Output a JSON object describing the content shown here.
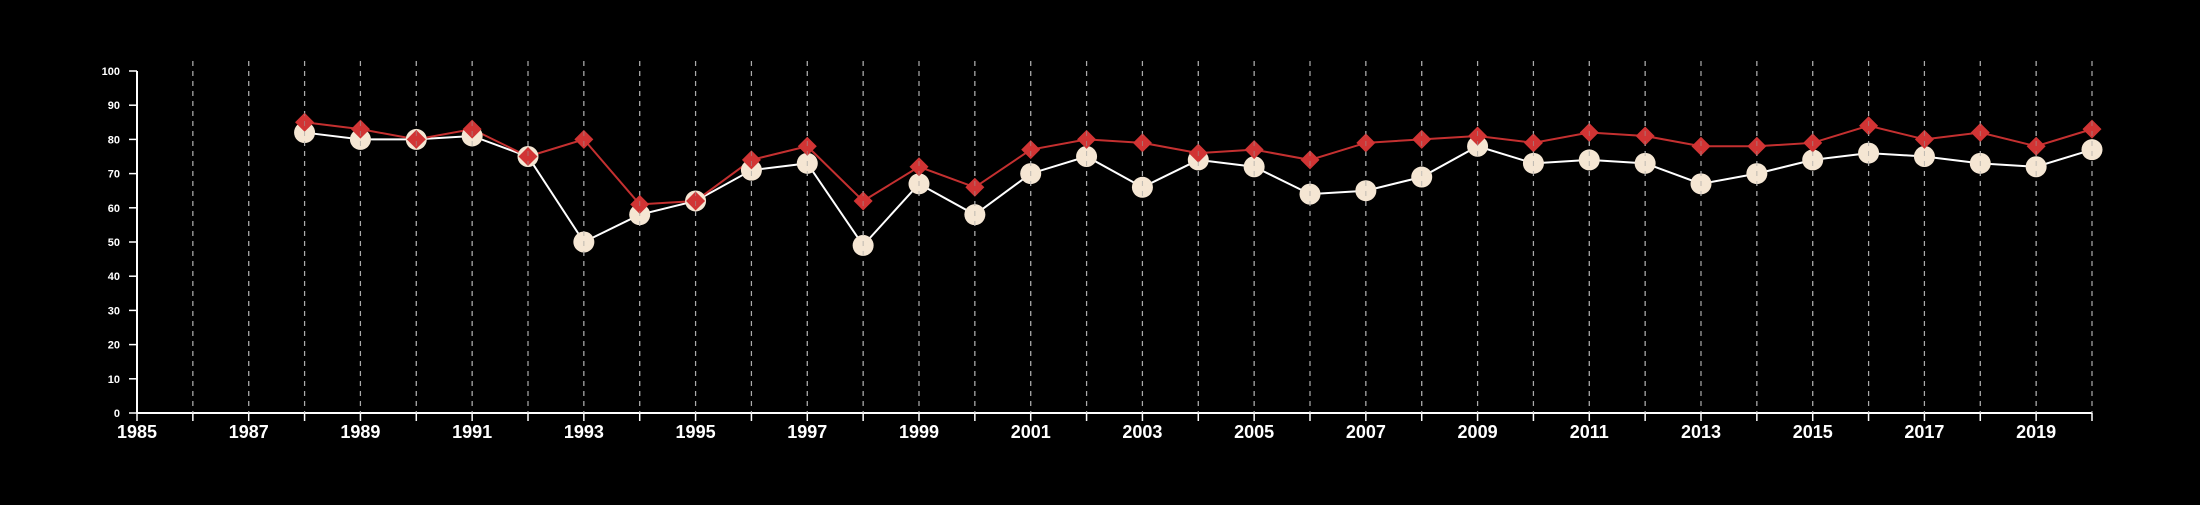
{
  "chart_data": {
    "type": "line",
    "title": "",
    "xlabel": "",
    "ylabel": "",
    "xlim": [
      1985,
      2020
    ],
    "ylim": [
      0,
      100
    ],
    "x_ticks": [
      1985,
      1987,
      1989,
      1991,
      1993,
      1995,
      1997,
      1999,
      2001,
      2003,
      2005,
      2007,
      2009,
      2011,
      2013,
      2015,
      2017,
      2019
    ],
    "x_tick_labels": [
      "1985",
      "1987",
      "1989",
      "1991",
      "1993",
      "1995",
      "1997",
      "1999",
      "2001",
      "2003",
      "2005",
      "2007",
      "2009",
      "2011",
      "2013",
      "2015",
      "2017",
      "2019"
    ],
    "y_ticks": [
      0,
      10,
      20,
      30,
      40,
      50,
      60,
      70,
      80,
      90,
      100
    ],
    "y_tick_labels": [
      "0",
      "10",
      "20",
      "30",
      "40",
      "50",
      "60",
      "70",
      "80",
      "90",
      "100"
    ],
    "grid": "vertical dashed lines at every year",
    "legend": "none",
    "x": [
      1988,
      1989,
      1990,
      1991,
      1992,
      1993,
      1994,
      1995,
      1996,
      1997,
      1998,
      1999,
      2000,
      2001,
      2002,
      2003,
      2004,
      2005,
      2006,
      2007,
      2008,
      2009,
      2010,
      2011,
      2012,
      2013,
      2014,
      2015,
      2016,
      2017,
      2018,
      2019,
      2020
    ],
    "series": [
      {
        "marker": "circle",
        "color": "#f5e6d3",
        "line_color": "#ffffff",
        "values": [
          82,
          80,
          80,
          81,
          75,
          50,
          58,
          62,
          71,
          73,
          49,
          67,
          58,
          70,
          75,
          66,
          74,
          72,
          64,
          65,
          69,
          78,
          73,
          74,
          73,
          67,
          70,
          74,
          76,
          75,
          73,
          72,
          77
        ]
      },
      {
        "marker": "diamond",
        "color": "#d13434",
        "line_color": "#c43030",
        "values": [
          85,
          83,
          80,
          83,
          75,
          80,
          61,
          62,
          74,
          78,
          62,
          72,
          66,
          77,
          80,
          79,
          76,
          77,
          74,
          79,
          80,
          81,
          79,
          82,
          81,
          78,
          78,
          79,
          84,
          80,
          82,
          78,
          83
        ]
      }
    ]
  }
}
